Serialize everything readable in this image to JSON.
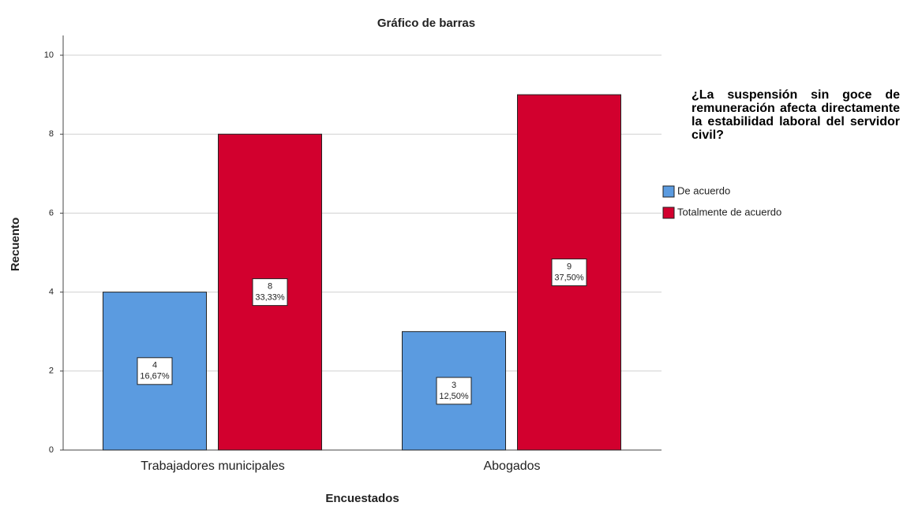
{
  "chart_data": {
    "type": "bar",
    "title": "Gráfico de barras",
    "x_label": "Encuestados",
    "y_label": "Recuento",
    "legend_title": "¿La suspensión sin goce de remuneración afecta directamente la estabilidad laboral del servidor civil?",
    "categories": [
      "Trabajadores municipales",
      "Abogados"
    ],
    "series": [
      {
        "name": "De acuerdo",
        "color": "#5b9be0",
        "values": [
          4,
          3
        ],
        "percent_labels": [
          "16,67%",
          "12,50%"
        ]
      },
      {
        "name": "Totalmente de acuerdo",
        "color": "#d2002e",
        "values": [
          8,
          9
        ],
        "percent_labels": [
          "33,33%",
          "37,50%"
        ]
      }
    ],
    "ylim": [
      0,
      10.5
    ],
    "yticks": [
      0,
      2,
      4,
      6,
      8,
      10
    ],
    "grid": true,
    "legend": "right"
  }
}
